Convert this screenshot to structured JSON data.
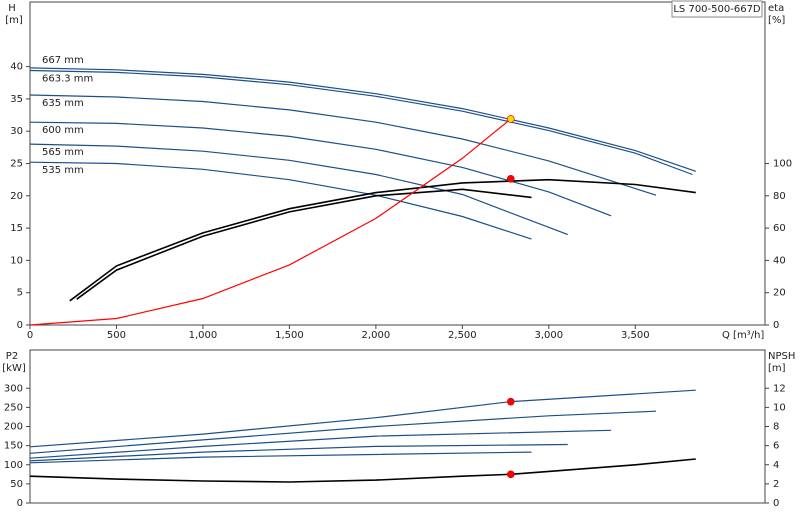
{
  "chart_data": [
    {
      "type": "line",
      "title": "LS 700-500-667D",
      "ylabel": "H",
      "ylabel_unit": "[m]",
      "y2label": "eta",
      "y2label_unit": "[%]",
      "xlabel": "Q [m³/h]",
      "xlim": [
        0,
        4250
      ],
      "ylim": [
        0,
        50
      ],
      "y2lim": [
        0,
        200
      ],
      "xticks": [
        0,
        500,
        {
          "value": 1000,
          "label": "1,000"
        },
        {
          "value": 1500,
          "label": "1,500"
        },
        {
          "value": 2000,
          "label": "2,000"
        },
        {
          "value": 2500,
          "label": "2,500"
        },
        {
          "value": 3000,
          "label": "3,000"
        },
        {
          "value": 3500,
          "label": "3,500"
        }
      ],
      "yticks": [
        0,
        5,
        10,
        15,
        20,
        25,
        30,
        35,
        40
      ],
      "y2ticks": [
        0,
        20,
        40,
        60,
        80,
        100
      ],
      "series": [
        {
          "name": "667 mm",
          "color": "#1c4f8a",
          "x": [
            0,
            500,
            1000,
            1500,
            2000,
            2500,
            3000,
            3500,
            3850
          ],
          "values": [
            39.8,
            39.5,
            38.8,
            37.6,
            35.8,
            33.5,
            30.5,
            27,
            23.8
          ]
        },
        {
          "name": "663.3 mm",
          "color": "#1c4f8a",
          "x": [
            0,
            500,
            1000,
            1500,
            2000,
            2500,
            3000,
            3500,
            3830
          ],
          "values": [
            39.4,
            39.1,
            38.4,
            37.2,
            35.4,
            33.1,
            30.1,
            26.6,
            23.3
          ]
        },
        {
          "name": "635 mm",
          "color": "#1c4f8a",
          "x": [
            0,
            500,
            1000,
            1500,
            2000,
            2500,
            3000,
            3620
          ],
          "values": [
            35.6,
            35.3,
            34.6,
            33.3,
            31.4,
            28.8,
            25.4,
            20.1
          ]
        },
        {
          "name": "600 mm",
          "color": "#1c4f8a",
          "x": [
            0,
            500,
            1000,
            1500,
            2000,
            2500,
            3000,
            3360
          ],
          "values": [
            31.4,
            31.2,
            30.5,
            29.2,
            27.2,
            24.4,
            20.6,
            16.9
          ]
        },
        {
          "name": "565 mm",
          "color": "#1c4f8a",
          "x": [
            0,
            500,
            1000,
            1500,
            2000,
            2500,
            3110
          ],
          "values": [
            28.0,
            27.7,
            26.9,
            25.5,
            23.3,
            20.2,
            14.0
          ]
        },
        {
          "name": "535 mm",
          "color": "#1c4f8a",
          "x": [
            0,
            500,
            1000,
            1500,
            2000,
            2500,
            2900
          ],
          "values": [
            25.2,
            25.0,
            24.1,
            22.5,
            20.1,
            16.8,
            13.3
          ]
        },
        {
          "color": "#000000",
          "axis": "y2",
          "x": [
            230,
            500,
            1000,
            1500,
            2000,
            2500,
            3000,
            3500,
            3850
          ],
          "values": [
            15,
            36.6,
            57,
            72,
            82,
            88,
            90,
            87,
            82
          ]
        },
        {
          "color": "#000000",
          "axis": "y2",
          "x": [
            270,
            500,
            1000,
            1500,
            2000,
            2500,
            2900
          ],
          "values": [
            16,
            34,
            55,
            70,
            80,
            84,
            79
          ]
        },
        {
          "color": "#ff0000",
          "x": [
            0,
            500,
            1000,
            1500,
            2000,
            2500,
            2780
          ],
          "values": [
            0,
            1.0,
            4.1,
            9.3,
            16.5,
            25.8,
            31.9
          ]
        },
        {
          "color": "#ffd700",
          "marker": "circle",
          "x": [
            2780
          ],
          "values": [
            31.9
          ]
        },
        {
          "color": "#ff0000",
          "marker": "circle",
          "axis": "y2",
          "x": [
            2780
          ],
          "values": [
            90.5
          ]
        }
      ]
    },
    {
      "type": "line",
      "ylabel": "P2",
      "ylabel_unit": "[kW]",
      "y2label": "NPSH",
      "y2label_unit": "[m]",
      "xlim": [
        0,
        4250
      ],
      "ylim": [
        0,
        400
      ],
      "y2lim": [
        0,
        16
      ],
      "yticks": [
        0,
        50,
        100,
        150,
        200,
        250,
        300
      ],
      "y2ticks": [
        0,
        2,
        4,
        6,
        8,
        10,
        12
      ],
      "series": [
        {
          "color": "#1c4f8a",
          "x": [
            0,
            1000,
            2000,
            2780,
            3850
          ],
          "values": [
            147,
            180,
            223,
            265,
            295
          ]
        },
        {
          "color": "#1c4f8a",
          "x": [
            0,
            1000,
            2000,
            3000,
            3620
          ],
          "values": [
            130,
            165,
            200,
            228,
            240
          ]
        },
        {
          "color": "#1c4f8a",
          "x": [
            0,
            1000,
            2000,
            3360
          ],
          "values": [
            117,
            148,
            175,
            190
          ]
        },
        {
          "color": "#1c4f8a",
          "x": [
            0,
            1000,
            2000,
            3110
          ],
          "values": [
            110,
            133,
            148,
            153
          ]
        },
        {
          "color": "#1c4f8a",
          "x": [
            0,
            1000,
            2900
          ],
          "values": [
            105,
            120,
            133
          ]
        },
        {
          "color": "#000000",
          "axis": "y2",
          "x": [
            0,
            500,
            1000,
            1500,
            2000,
            2500,
            2780,
            3000,
            3500,
            3850
          ],
          "values": [
            2.8,
            2.5,
            2.3,
            2.2,
            2.4,
            2.8,
            3.0,
            3.3,
            4.0,
            4.6
          ]
        },
        {
          "color": "#ff0000",
          "marker": "circle",
          "x": [
            2780
          ],
          "values": [
            265
          ]
        },
        {
          "color": "#ff0000",
          "marker": "circle",
          "axis": "y2",
          "x": [
            2780
          ],
          "values": [
            3.0
          ]
        }
      ]
    }
  ]
}
